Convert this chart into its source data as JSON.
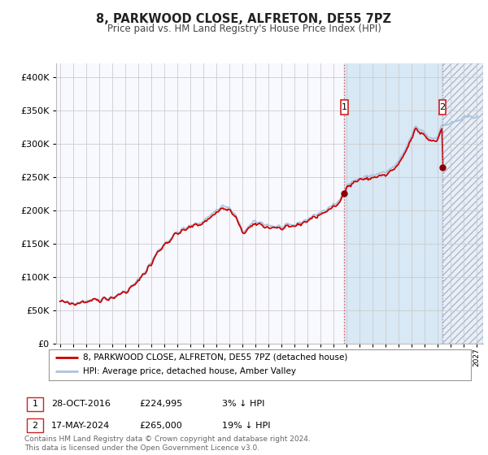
{
  "title1": "8, PARKWOOD CLOSE, ALFRETON, DE55 7PZ",
  "title2": "Price paid vs. HM Land Registry's House Price Index (HPI)",
  "yticks": [
    0,
    50000,
    100000,
    150000,
    200000,
    250000,
    300000,
    350000,
    400000
  ],
  "hpi_color": "#a8c4e0",
  "price_color": "#cc0000",
  "background_plot": "#f8f8f8",
  "background_fig": "#ffffff",
  "grid_color": "#dddddd",
  "sale1_date": 2016.83,
  "sale1_price": 224995,
  "sale2_date": 2024.38,
  "sale2_price": 265000,
  "sale1_label": "28-OCT-2016",
  "sale2_label": "17-MAY-2024",
  "sale1_hpi_pct": "3% ↓ HPI",
  "sale2_hpi_pct": "19% ↓ HPI",
  "legend_line1": "8, PARKWOOD CLOSE, ALFRETON, DE55 7PZ (detached house)",
  "legend_line2": "HPI: Average price, detached house, Amber Valley",
  "footnote": "Contains HM Land Registry data © Crown copyright and database right 2024.\nThis data is licensed under the Open Government Licence v3.0.",
  "future_start": 2024.38,
  "shade_start": 2016.83,
  "xlim_start": 1994.7,
  "xlim_end": 2027.5,
  "ylim_max": 420000
}
